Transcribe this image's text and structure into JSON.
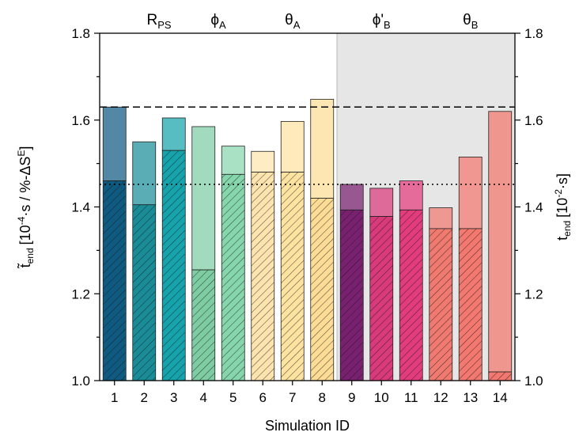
{
  "chart_data": {
    "type": "bar",
    "xlabel": "Simulation ID",
    "ylabel_left": {
      "main": "t̃",
      "sub": "end",
      "units": "[10",
      "exp1": "-4",
      "mid": "·s / %-ΔS",
      "exp2": "E",
      "close": "]"
    },
    "ylabel_right": {
      "main": "t",
      "sub": "end",
      "units": "[10",
      "exp": "-2",
      "close": "·s]"
    },
    "ylim": [
      1.0,
      1.8
    ],
    "yticks": [
      "1.0",
      "1.2",
      "1.4",
      "1.6",
      "1.8"
    ],
    "categories": [
      "1",
      "2",
      "3",
      "4",
      "5",
      "6",
      "7",
      "8",
      "9",
      "10",
      "11",
      "12",
      "13",
      "14"
    ],
    "series": [
      {
        "values": [
          1.63,
          1.55,
          1.605,
          1.585,
          1.54,
          1.528,
          1.597,
          1.648,
          1.452,
          1.443,
          1.46,
          1.398,
          1.515,
          1.62
        ]
      },
      {
        "values": [
          1.46,
          1.405,
          1.53,
          1.255,
          1.475,
          1.48,
          1.48,
          1.42,
          1.393,
          1.378,
          1.393,
          1.35,
          1.35,
          1.02
        ]
      }
    ],
    "bar_colors": [
      "#0f5a80",
      "#1a8c98",
      "#16a3ac",
      "#7dcca2",
      "#86d6ac",
      "#fde4ae",
      "#fde2a0",
      "#fddc96",
      "#7a2070",
      "#d93a7a",
      "#e33c7d",
      "#f07a70",
      "#f3786f",
      "#f2776e"
    ],
    "reference_lines": [
      {
        "style": "dashed",
        "y": 1.63
      },
      {
        "style": "dotted",
        "y": 1.452
      }
    ],
    "shaded_region": {
      "from_category": "9",
      "to_category": "14",
      "color": "#e6e6e6"
    },
    "group_labels": [
      {
        "main": "R",
        "sub": "PS",
        "over": [
          "2",
          "3"
        ]
      },
      {
        "main": "ϕ",
        "sub": "A",
        "over": [
          "4",
          "5"
        ]
      },
      {
        "main": "θ",
        "sub": "A",
        "over": [
          "6",
          "7",
          "8"
        ]
      },
      {
        "main": "ϕ'",
        "sub": "B",
        "over": [
          "9",
          "10",
          "11"
        ]
      },
      {
        "main": "θ",
        "sub": "B",
        "over": [
          "12",
          "13",
          "14"
        ]
      }
    ]
  }
}
